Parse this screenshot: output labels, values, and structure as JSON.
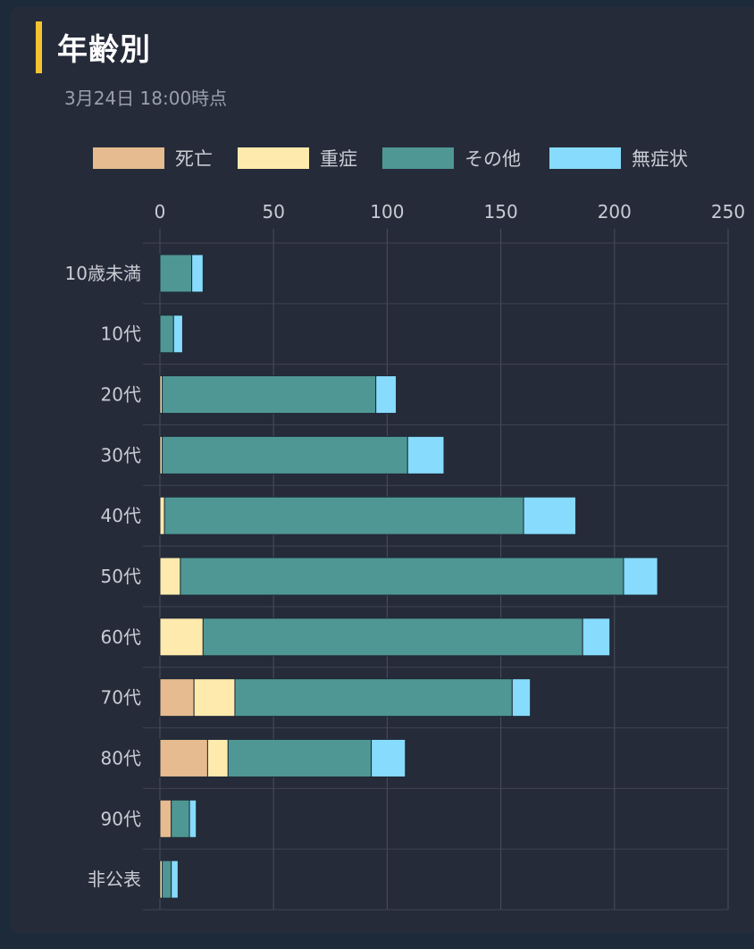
{
  "header": {
    "title": "年齢別",
    "subtitle": "3月24日 18:00時点"
  },
  "colors": {
    "accent": "#f4c430",
    "background": "#262b3a",
    "grid": "#4a4f5c",
    "text": "#c9ccd3"
  },
  "chart_data": {
    "type": "bar",
    "orientation": "horizontal",
    "stacked": true,
    "title": "年齢別",
    "subtitle": "3月24日 18:00時点",
    "xlabel": "",
    "ylabel": "",
    "xlim": [
      0,
      250
    ],
    "xticks": [
      0,
      50,
      100,
      150,
      200,
      250
    ],
    "grid": true,
    "legend_position": "top",
    "categories": [
      "10歳未満",
      "10代",
      "20代",
      "30代",
      "40代",
      "50代",
      "60代",
      "70代",
      "80代",
      "90代",
      "非公表"
    ],
    "series": [
      {
        "name": "死亡",
        "color": "#e6bb8f",
        "values": [
          0,
          0,
          0,
          0,
          0,
          0,
          0,
          15,
          21,
          5,
          0
        ]
      },
      {
        "name": "重症",
        "color": "#ffeaad",
        "values": [
          0,
          0,
          1,
          1,
          2,
          9,
          19,
          18,
          9,
          0,
          1
        ]
      },
      {
        "name": "その他",
        "color": "#4f9794",
        "values": [
          14,
          6,
          94,
          108,
          158,
          195,
          167,
          122,
          63,
          8,
          4
        ]
      },
      {
        "name": "無症状",
        "color": "#87dbfc",
        "values": [
          5,
          4,
          9,
          16,
          23,
          15,
          12,
          8,
          15,
          3,
          3
        ]
      }
    ]
  }
}
